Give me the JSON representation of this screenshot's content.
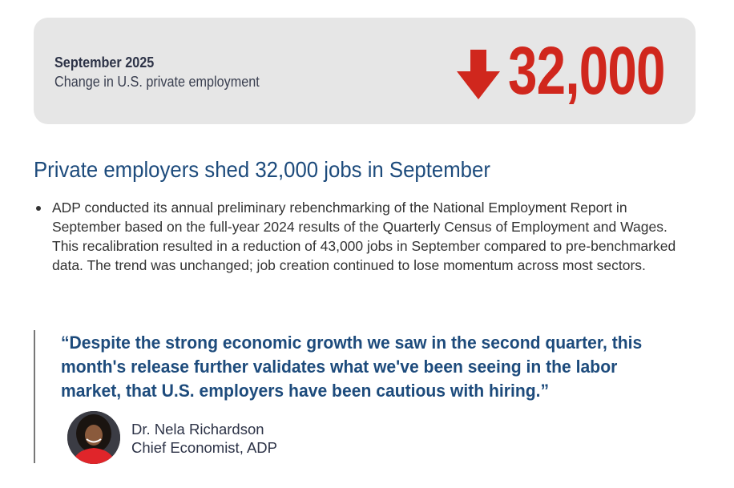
{
  "summary": {
    "period": "September 2025",
    "label": "Change in U.S. private employment",
    "direction_icon": "arrow-down-icon",
    "value": "32,000",
    "accent_color": "#d0271d"
  },
  "headline": "Private employers shed 32,000 jobs in September",
  "bullets": [
    "ADP conducted its annual preliminary rebenchmarking of the National Employment Report in September based on the full-year 2024 results of the Quarterly Census of Employment and Wages. This recalibration resulted in a reduction of 43,000 jobs in September compared to pre-benchmarked data. The trend was unchanged; job creation continued to lose momentum across most sectors."
  ],
  "quote": {
    "text": "“Despite the strong economic growth we saw in the second quarter, this month's release further validates what we've been seeing in the labor market, that U.S. employers have been cautious with hiring.”",
    "author_name": "Dr. Nela Richardson",
    "author_title": "Chief Economist, ADP"
  }
}
